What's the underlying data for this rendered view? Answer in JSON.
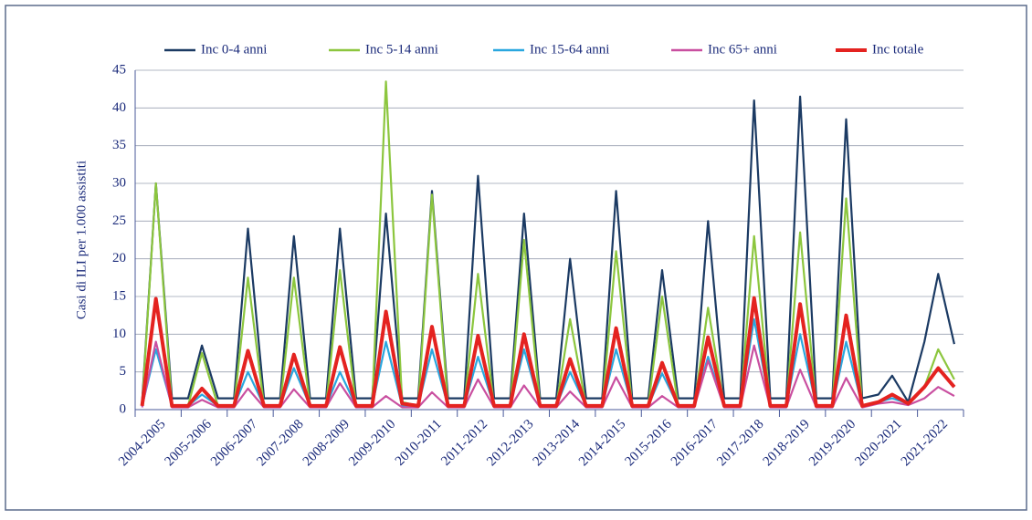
{
  "chart_data": {
    "type": "line",
    "y_label": "Casi di ILI per 1.000 assistiti",
    "categories": [
      "2004-2005",
      "2005-2006",
      "2006-2007",
      "2007-2008",
      "2008-2009",
      "2009-2010",
      "2010-2011",
      "2011-2012",
      "2012-2013",
      "2013-2014",
      "2014-2015",
      "2015-2016",
      "2016-2017",
      "2017-2018",
      "2018-2019",
      "2019-2020",
      "2020-2021",
      "2021-2022"
    ],
    "x": [
      0.15,
      0.45,
      0.8,
      1.15,
      1.45,
      1.8,
      2.15,
      2.45,
      2.8,
      3.15,
      3.45,
      3.8,
      4.15,
      4.45,
      4.8,
      5.15,
      5.45,
      5.8,
      6.15,
      6.45,
      6.8,
      7.15,
      7.45,
      7.8,
      8.15,
      8.45,
      8.8,
      9.15,
      9.45,
      9.8,
      10.15,
      10.45,
      10.8,
      11.15,
      11.45,
      11.8,
      12.15,
      12.45,
      12.8,
      13.15,
      13.45,
      13.8,
      14.15,
      14.45,
      14.8,
      15.15,
      15.45,
      15.8,
      16.15,
      16.45,
      16.8,
      17.15,
      17.45,
      17.8
    ],
    "xlim": [
      0,
      18
    ],
    "ylim": [
      0,
      45
    ],
    "yticks": [
      0,
      5,
      10,
      15,
      20,
      25,
      30,
      35,
      40,
      45
    ],
    "grid": true,
    "legend": "top",
    "series": [
      {
        "name": "Inc 0-4 anni",
        "color": "#1b3a63",
        "values": [
          1,
          30,
          1.5,
          1.5,
          8.5,
          1.5,
          1.5,
          24,
          1.5,
          1.5,
          23,
          1.5,
          1.5,
          24,
          1.5,
          1.5,
          26,
          1.5,
          1.5,
          29,
          1.5,
          1.5,
          31,
          1.5,
          1.5,
          26,
          1.5,
          1.5,
          20,
          1.5,
          1.5,
          29,
          1.5,
          1.5,
          18.5,
          1.5,
          1.5,
          25,
          1.5,
          1.5,
          41,
          1.5,
          1.5,
          41.5,
          1.5,
          1.5,
          38.5,
          1.5,
          2,
          4.5,
          1,
          9,
          18,
          8.7
        ]
      },
      {
        "name": "Inc 5-14 anni",
        "color": "#8cc63e",
        "values": [
          0.5,
          30,
          0.5,
          0.5,
          7.5,
          0.5,
          0.5,
          17.5,
          0.5,
          0.5,
          17.5,
          0.5,
          0.5,
          18.5,
          0.5,
          0.5,
          43.5,
          1,
          0.5,
          28.5,
          0.5,
          0.5,
          18,
          0.5,
          0.5,
          22.5,
          0.5,
          0.5,
          12,
          0.5,
          0.5,
          21,
          0.5,
          0.5,
          15,
          0.5,
          0.5,
          13.5,
          0.5,
          0.5,
          23,
          0.5,
          0.5,
          23.5,
          0.5,
          0.5,
          28,
          0.5,
          1,
          2,
          0.8,
          3,
          8,
          4
        ]
      },
      {
        "name": "Inc 15-64 anni",
        "color": "#2aa7df",
        "values": [
          0.5,
          8,
          0.5,
          0.5,
          2,
          0.5,
          0.5,
          5,
          0.5,
          0.5,
          5.5,
          0.5,
          0.5,
          5,
          0.5,
          0.5,
          9,
          0.5,
          0.5,
          8,
          0.5,
          0.5,
          7,
          0.5,
          0.5,
          8,
          0.5,
          0.5,
          5,
          0.5,
          0.5,
          8,
          0.5,
          0.5,
          4.8,
          0.5,
          0.5,
          7,
          0.5,
          0.5,
          12,
          0.5,
          0.5,
          10,
          0.5,
          0.5,
          9,
          0.5,
          1,
          1.5,
          0.8,
          3,
          5.5,
          3
        ]
      },
      {
        "name": "Inc 65+ anni",
        "color": "#c94fa0",
        "values": [
          0.3,
          9,
          0.3,
          0.3,
          1.3,
          0.3,
          0.3,
          2.8,
          0.3,
          0.3,
          2.7,
          0.3,
          0.3,
          3.5,
          0.3,
          0.3,
          1.8,
          0.3,
          0.3,
          2.3,
          0.3,
          0.3,
          4,
          0.3,
          0.3,
          3.2,
          0.3,
          0.3,
          2.4,
          0.3,
          0.3,
          4.3,
          0.3,
          0.3,
          1.8,
          0.3,
          0.3,
          6.5,
          0.3,
          0.3,
          8.5,
          0.3,
          0.3,
          5.3,
          0.3,
          0.3,
          4.2,
          0.3,
          0.8,
          1,
          0.6,
          1.5,
          3,
          1.8
        ]
      },
      {
        "name": "Inc totale",
        "color": "#e42320",
        "values": [
          0.5,
          14.7,
          0.5,
          0.5,
          2.8,
          0.5,
          0.5,
          7.8,
          0.5,
          0.5,
          7.3,
          0.5,
          0.5,
          8.3,
          0.5,
          0.5,
          13,
          0.8,
          0.5,
          11,
          0.5,
          0.5,
          9.8,
          0.5,
          0.5,
          10,
          0.5,
          0.5,
          6.7,
          0.5,
          0.5,
          10.8,
          0.5,
          0.5,
          6.2,
          0.5,
          0.5,
          9.6,
          0.5,
          0.5,
          14.8,
          0.5,
          0.5,
          14,
          0.5,
          0.5,
          12.5,
          0.5,
          1,
          2,
          0.8,
          3,
          5.5,
          3
        ]
      }
    ]
  }
}
